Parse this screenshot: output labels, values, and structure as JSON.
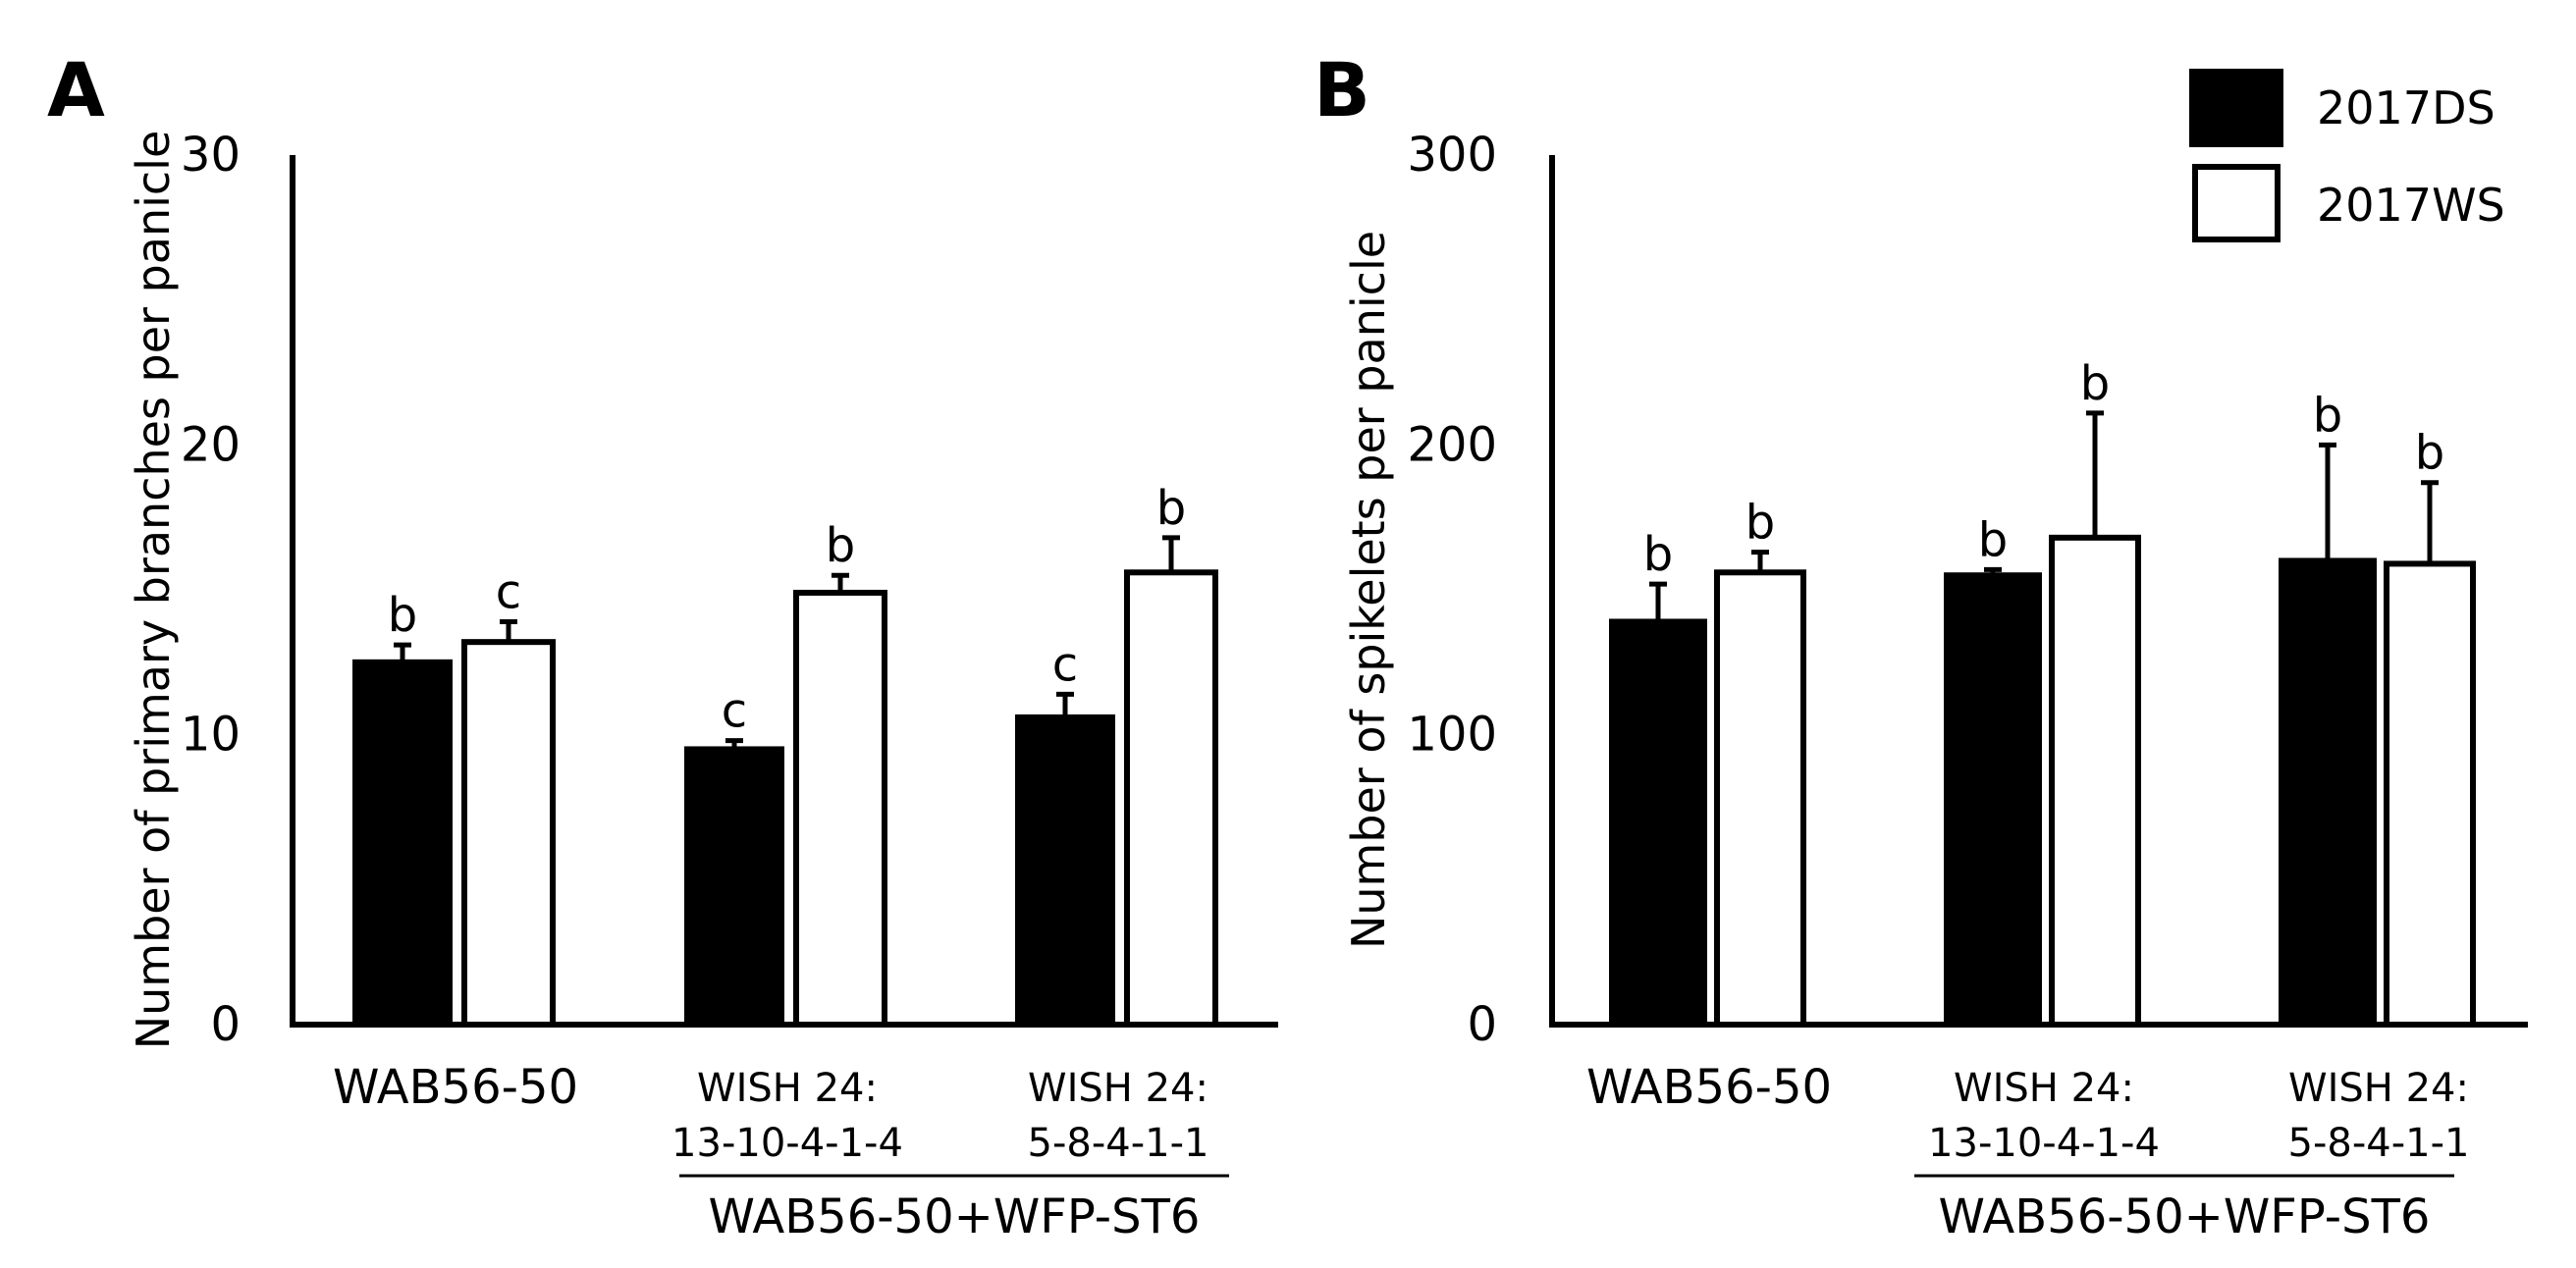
{
  "legend": [
    {
      "label": "2017DS",
      "color": "#000000"
    },
    {
      "label": "2017WS",
      "color": "#ffffff"
    }
  ],
  "chart_data": [
    {
      "panel": "A",
      "type": "bar",
      "ylabel": "Number of primary branches per panicle",
      "ylim": [
        0,
        30
      ],
      "yticks": [
        "0",
        "10",
        "20",
        "30"
      ],
      "group_label": "WAB56-50+WFP-ST6",
      "categories": [
        {
          "lines": [
            "WAB56-50"
          ]
        },
        {
          "lines": [
            "WISH 24:",
            "13-10-4-1-4"
          ]
        },
        {
          "lines": [
            "WISH 24:",
            "5-8-4-1-1"
          ]
        }
      ],
      "series": [
        {
          "name": "2017DS",
          "color": "#000000",
          "values": [
            12.5,
            9.5,
            10.6
          ],
          "errors": [
            0.6,
            0.3,
            0.8
          ],
          "letters": [
            "b",
            "c",
            "c"
          ]
        },
        {
          "name": "2017WS",
          "color": "#ffffff",
          "values": [
            13.2,
            14.9,
            15.6
          ],
          "errors": [
            0.7,
            0.6,
            1.2
          ],
          "letters": [
            "c",
            "b",
            "b"
          ]
        }
      ]
    },
    {
      "panel": "B",
      "type": "bar",
      "ylabel": "Number of spikelets per panicle",
      "ylim": [
        0,
        300
      ],
      "yticks": [
        "0",
        "100",
        "200",
        "300"
      ],
      "group_label": "WAB56-50+WFP-ST6",
      "categories": [
        {
          "lines": [
            "WAB56-50"
          ]
        },
        {
          "lines": [
            "WISH 24:",
            "13-10-4-1-4"
          ]
        },
        {
          "lines": [
            "WISH 24:",
            "5-8-4-1-1"
          ]
        }
      ],
      "series": [
        {
          "name": "2017DS",
          "color": "#000000",
          "values": [
            139,
            155,
            160
          ],
          "errors": [
            13,
            2,
            40
          ],
          "letters": [
            "b",
            "b",
            "b"
          ]
        },
        {
          "name": "2017WS",
          "color": "#ffffff",
          "values": [
            156,
            168,
            159
          ],
          "errors": [
            7,
            43,
            28
          ],
          "letters": [
            "b",
            "b",
            "b"
          ]
        }
      ]
    }
  ]
}
